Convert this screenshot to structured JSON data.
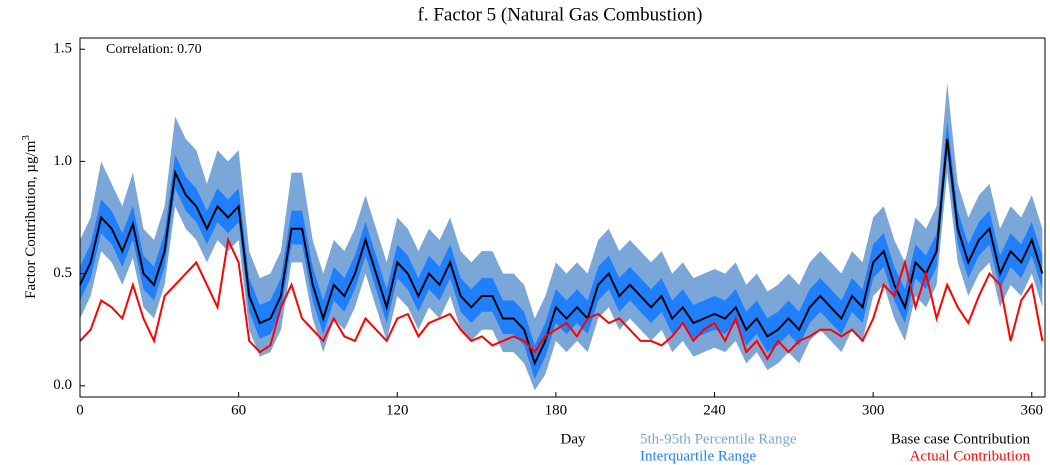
{
  "chart_data": {
    "type": "line",
    "title": "f.  Factor 5 (Natural Gas Combustion)",
    "xlabel": "Day",
    "ylabel": "Factor Contribution,  µg/m",
    "ylabel_superscript": "3",
    "annotation": "Correlation: 0.70",
    "xlim": [
      0,
      365
    ],
    "xticks": [
      0,
      60,
      120,
      180,
      240,
      300,
      360
    ],
    "ylim": [
      -0.05,
      1.55
    ],
    "yticks": [
      {
        "value": 0,
        "label": "0.0"
      },
      0.5,
      {
        "value": 1,
        "label": "1.0"
      },
      1.5
    ],
    "x": [
      0,
      4,
      8,
      12,
      16,
      20,
      24,
      28,
      32,
      36,
      40,
      44,
      48,
      52,
      56,
      60,
      64,
      68,
      72,
      76,
      80,
      84,
      88,
      92,
      96,
      100,
      104,
      108,
      112,
      116,
      120,
      124,
      128,
      132,
      136,
      140,
      144,
      148,
      152,
      156,
      160,
      164,
      168,
      172,
      176,
      180,
      184,
      188,
      192,
      196,
      200,
      204,
      208,
      212,
      216,
      220,
      224,
      228,
      232,
      236,
      240,
      244,
      248,
      252,
      256,
      260,
      264,
      268,
      272,
      276,
      280,
      284,
      288,
      292,
      296,
      300,
      304,
      308,
      312,
      316,
      320,
      324,
      328,
      332,
      336,
      340,
      344,
      348,
      352,
      356,
      360,
      364
    ],
    "series": [
      {
        "name": "5th-95th Percentile Range",
        "kind": "band",
        "color": "#7aa6d8",
        "low": [
          0.3,
          0.4,
          0.6,
          0.55,
          0.45,
          0.57,
          0.35,
          0.3,
          0.45,
          0.8,
          0.7,
          0.65,
          0.55,
          0.65,
          0.6,
          0.65,
          0.25,
          0.13,
          0.15,
          0.25,
          0.55,
          0.55,
          0.3,
          0.15,
          0.3,
          0.25,
          0.35,
          0.5,
          0.35,
          0.2,
          0.4,
          0.35,
          0.25,
          0.35,
          0.3,
          0.4,
          0.25,
          0.2,
          0.25,
          0.25,
          0.15,
          0.15,
          0.1,
          -0.02,
          0.05,
          0.2,
          0.15,
          0.2,
          0.15,
          0.3,
          0.35,
          0.25,
          0.3,
          0.25,
          0.2,
          0.25,
          0.15,
          0.2,
          0.13,
          0.15,
          0.17,
          0.15,
          0.2,
          0.1,
          0.15,
          0.07,
          0.1,
          0.15,
          0.1,
          0.2,
          0.25,
          0.2,
          0.15,
          0.25,
          0.2,
          0.4,
          0.45,
          0.3,
          0.2,
          0.4,
          0.35,
          0.45,
          0.95,
          0.55,
          0.4,
          0.5,
          0.55,
          0.35,
          0.45,
          0.4,
          0.5,
          0.35
        ],
        "high": [
          0.65,
          0.75,
          1.0,
          0.9,
          0.8,
          0.95,
          0.7,
          0.65,
          0.8,
          1.2,
          1.1,
          1.05,
          0.9,
          1.05,
          1.0,
          1.05,
          0.6,
          0.48,
          0.5,
          0.6,
          0.95,
          0.95,
          0.65,
          0.5,
          0.65,
          0.6,
          0.7,
          0.85,
          0.7,
          0.55,
          0.75,
          0.7,
          0.6,
          0.7,
          0.65,
          0.75,
          0.6,
          0.55,
          0.6,
          0.6,
          0.5,
          0.5,
          0.45,
          0.3,
          0.4,
          0.55,
          0.5,
          0.55,
          0.5,
          0.65,
          0.7,
          0.6,
          0.65,
          0.6,
          0.55,
          0.6,
          0.5,
          0.55,
          0.48,
          0.5,
          0.52,
          0.5,
          0.55,
          0.45,
          0.5,
          0.42,
          0.45,
          0.5,
          0.45,
          0.55,
          0.6,
          0.55,
          0.5,
          0.6,
          0.55,
          0.75,
          0.8,
          0.65,
          0.55,
          0.75,
          0.7,
          0.8,
          1.35,
          0.9,
          0.75,
          0.85,
          0.9,
          0.7,
          0.8,
          0.75,
          0.85,
          0.7
        ]
      },
      {
        "name": "Interquartile Range",
        "kind": "band",
        "color": "#1f7fff",
        "low": [
          0.38,
          0.48,
          0.68,
          0.63,
          0.53,
          0.65,
          0.43,
          0.38,
          0.53,
          0.88,
          0.78,
          0.73,
          0.63,
          0.73,
          0.68,
          0.73,
          0.33,
          0.21,
          0.23,
          0.33,
          0.63,
          0.63,
          0.38,
          0.23,
          0.38,
          0.33,
          0.43,
          0.58,
          0.43,
          0.28,
          0.48,
          0.43,
          0.33,
          0.43,
          0.38,
          0.48,
          0.33,
          0.28,
          0.33,
          0.33,
          0.23,
          0.23,
          0.18,
          0.03,
          0.13,
          0.28,
          0.23,
          0.28,
          0.23,
          0.38,
          0.43,
          0.33,
          0.38,
          0.33,
          0.28,
          0.33,
          0.23,
          0.28,
          0.21,
          0.23,
          0.25,
          0.23,
          0.28,
          0.18,
          0.23,
          0.15,
          0.18,
          0.23,
          0.18,
          0.28,
          0.33,
          0.28,
          0.23,
          0.33,
          0.28,
          0.48,
          0.53,
          0.38,
          0.28,
          0.48,
          0.43,
          0.53,
          1.03,
          0.63,
          0.48,
          0.58,
          0.63,
          0.43,
          0.53,
          0.48,
          0.58,
          0.43
        ],
        "high": [
          0.53,
          0.63,
          0.83,
          0.78,
          0.68,
          0.8,
          0.58,
          0.53,
          0.68,
          1.03,
          0.93,
          0.88,
          0.78,
          0.88,
          0.83,
          0.88,
          0.48,
          0.36,
          0.38,
          0.48,
          0.78,
          0.78,
          0.53,
          0.38,
          0.53,
          0.48,
          0.58,
          0.73,
          0.58,
          0.43,
          0.63,
          0.58,
          0.48,
          0.58,
          0.53,
          0.63,
          0.48,
          0.43,
          0.48,
          0.48,
          0.38,
          0.38,
          0.33,
          0.18,
          0.28,
          0.43,
          0.38,
          0.43,
          0.38,
          0.53,
          0.58,
          0.48,
          0.53,
          0.48,
          0.43,
          0.48,
          0.38,
          0.43,
          0.36,
          0.38,
          0.4,
          0.38,
          0.43,
          0.33,
          0.38,
          0.3,
          0.33,
          0.38,
          0.33,
          0.43,
          0.48,
          0.43,
          0.38,
          0.48,
          0.43,
          0.63,
          0.68,
          0.53,
          0.43,
          0.63,
          0.58,
          0.68,
          1.18,
          0.78,
          0.63,
          0.73,
          0.78,
          0.58,
          0.68,
          0.63,
          0.73,
          0.58
        ]
      },
      {
        "name": "Base case Contribution",
        "kind": "line",
        "color": "#000000",
        "values": [
          0.45,
          0.55,
          0.75,
          0.7,
          0.6,
          0.72,
          0.5,
          0.45,
          0.6,
          0.95,
          0.85,
          0.8,
          0.7,
          0.8,
          0.75,
          0.8,
          0.4,
          0.28,
          0.3,
          0.4,
          0.7,
          0.7,
          0.45,
          0.3,
          0.45,
          0.4,
          0.5,
          0.65,
          0.5,
          0.35,
          0.55,
          0.5,
          0.4,
          0.5,
          0.45,
          0.55,
          0.4,
          0.35,
          0.4,
          0.4,
          0.3,
          0.3,
          0.25,
          0.1,
          0.2,
          0.35,
          0.3,
          0.35,
          0.3,
          0.45,
          0.5,
          0.4,
          0.45,
          0.4,
          0.35,
          0.4,
          0.3,
          0.35,
          0.28,
          0.3,
          0.32,
          0.3,
          0.35,
          0.25,
          0.3,
          0.22,
          0.25,
          0.3,
          0.25,
          0.35,
          0.4,
          0.35,
          0.3,
          0.4,
          0.35,
          0.55,
          0.6,
          0.45,
          0.35,
          0.55,
          0.5,
          0.6,
          1.1,
          0.7,
          0.55,
          0.65,
          0.7,
          0.5,
          0.6,
          0.55,
          0.65,
          0.5
        ]
      },
      {
        "name": "Actual Contribution",
        "kind": "line",
        "color": "#ff0000",
        "values": [
          0.2,
          0.25,
          0.38,
          0.35,
          0.3,
          0.45,
          0.3,
          0.2,
          0.4,
          0.45,
          0.5,
          0.55,
          0.45,
          0.35,
          0.65,
          0.55,
          0.2,
          0.15,
          0.18,
          0.35,
          0.45,
          0.3,
          0.25,
          0.2,
          0.3,
          0.22,
          0.2,
          0.3,
          0.25,
          0.2,
          0.3,
          0.32,
          0.22,
          0.28,
          0.3,
          0.32,
          0.25,
          0.2,
          0.22,
          0.18,
          0.2,
          0.22,
          0.2,
          0.15,
          0.22,
          0.25,
          0.28,
          0.22,
          0.3,
          0.32,
          0.28,
          0.3,
          0.25,
          0.2,
          0.2,
          0.18,
          0.22,
          0.28,
          0.2,
          0.25,
          0.28,
          0.2,
          0.3,
          0.15,
          0.2,
          0.12,
          0.2,
          0.15,
          0.2,
          0.22,
          0.25,
          0.25,
          0.22,
          0.25,
          0.2,
          0.3,
          0.45,
          0.4,
          0.55,
          0.35,
          0.5,
          0.3,
          0.45,
          0.35,
          0.28,
          0.4,
          0.5,
          0.45,
          0.2,
          0.38,
          0.45,
          0.2
        ]
      }
    ]
  }
}
